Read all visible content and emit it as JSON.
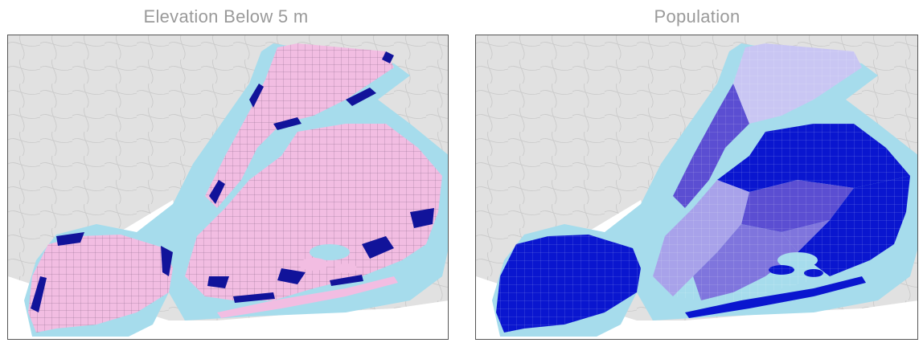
{
  "maps": [
    {
      "title": "Elevation Below 5 m",
      "layer": "elevation",
      "colors": {
        "background": "#e1e1e1",
        "water": "#a6dcec",
        "land": "#f2bde2",
        "low_elevation": "#11139a",
        "boundaries": "#7a5a7a"
      }
    },
    {
      "title": "Population",
      "layer": "population",
      "colors": {
        "background": "#e1e1e1",
        "water": "#a6dcec",
        "lowest": "#c9c6f3",
        "low": "#a8a2ea",
        "medium": "#7f75dd",
        "high": "#5b4ed2",
        "highest": "#0a16cf"
      }
    }
  ]
}
